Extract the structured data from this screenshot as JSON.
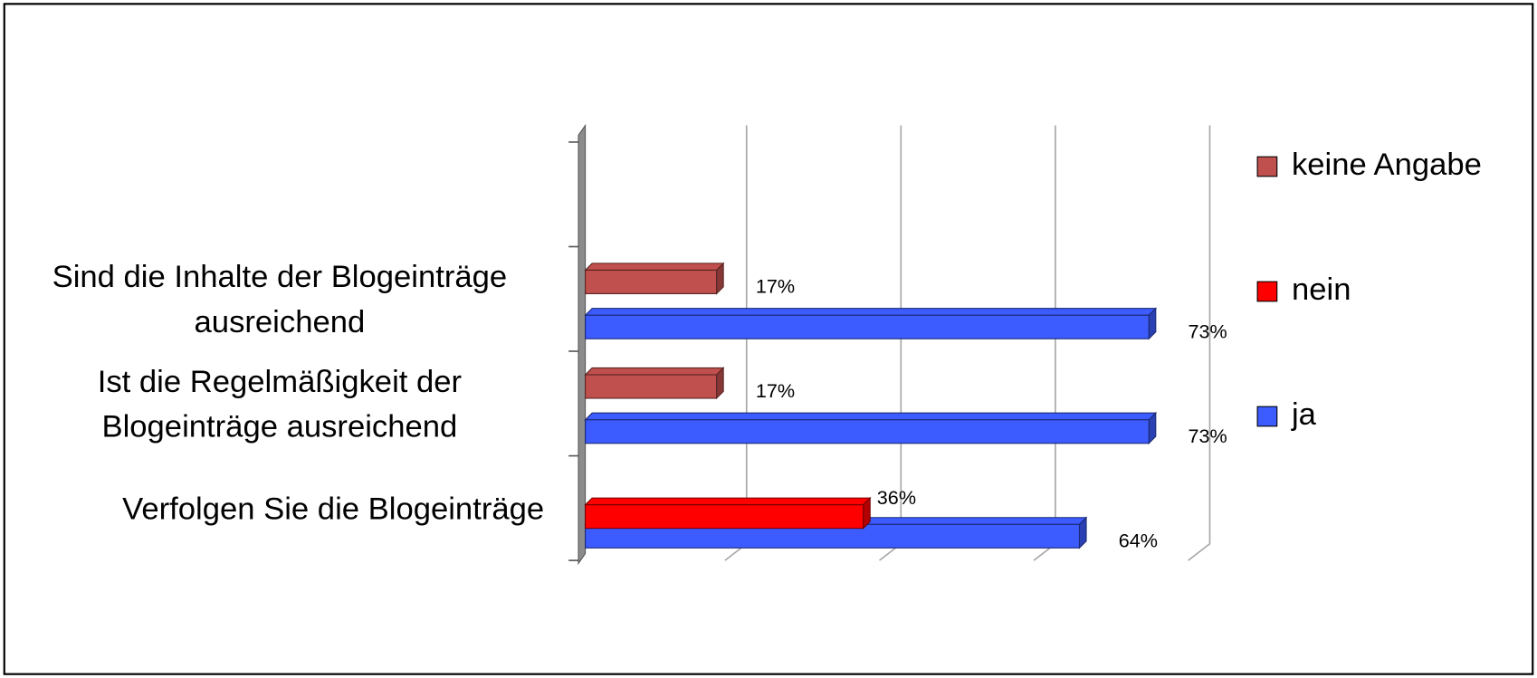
{
  "chart_data": {
    "type": "bar",
    "orientation": "horizontal",
    "categories": [
      "Verfolgen Sie die Blogeinträge",
      "Ist die Regelmäßigkeit der Blogeinträge ausreichend",
      "Sind die Inhalte der Blogeinträge ausreichend",
      null
    ],
    "series": [
      {
        "name": "ja",
        "color": "#3c5cff",
        "values": [
          64,
          73,
          73,
          null
        ],
        "value_labels": [
          "64%",
          "73%",
          "73%",
          null
        ]
      },
      {
        "name": "nein",
        "color": "#ff0000",
        "values": [
          36,
          null,
          null,
          null
        ],
        "value_labels": [
          "36%",
          null,
          null,
          null
        ]
      },
      {
        "name": "keine Angabe",
        "color": "#c0504d",
        "values": [
          null,
          17,
          17,
          null
        ],
        "value_labels": [
          null,
          "17%",
          "17%",
          null
        ]
      }
    ],
    "xlim": [
      0,
      80
    ],
    "xticks": [
      0,
      20,
      40,
      60,
      80
    ],
    "grid": true,
    "legend": "right"
  }
}
